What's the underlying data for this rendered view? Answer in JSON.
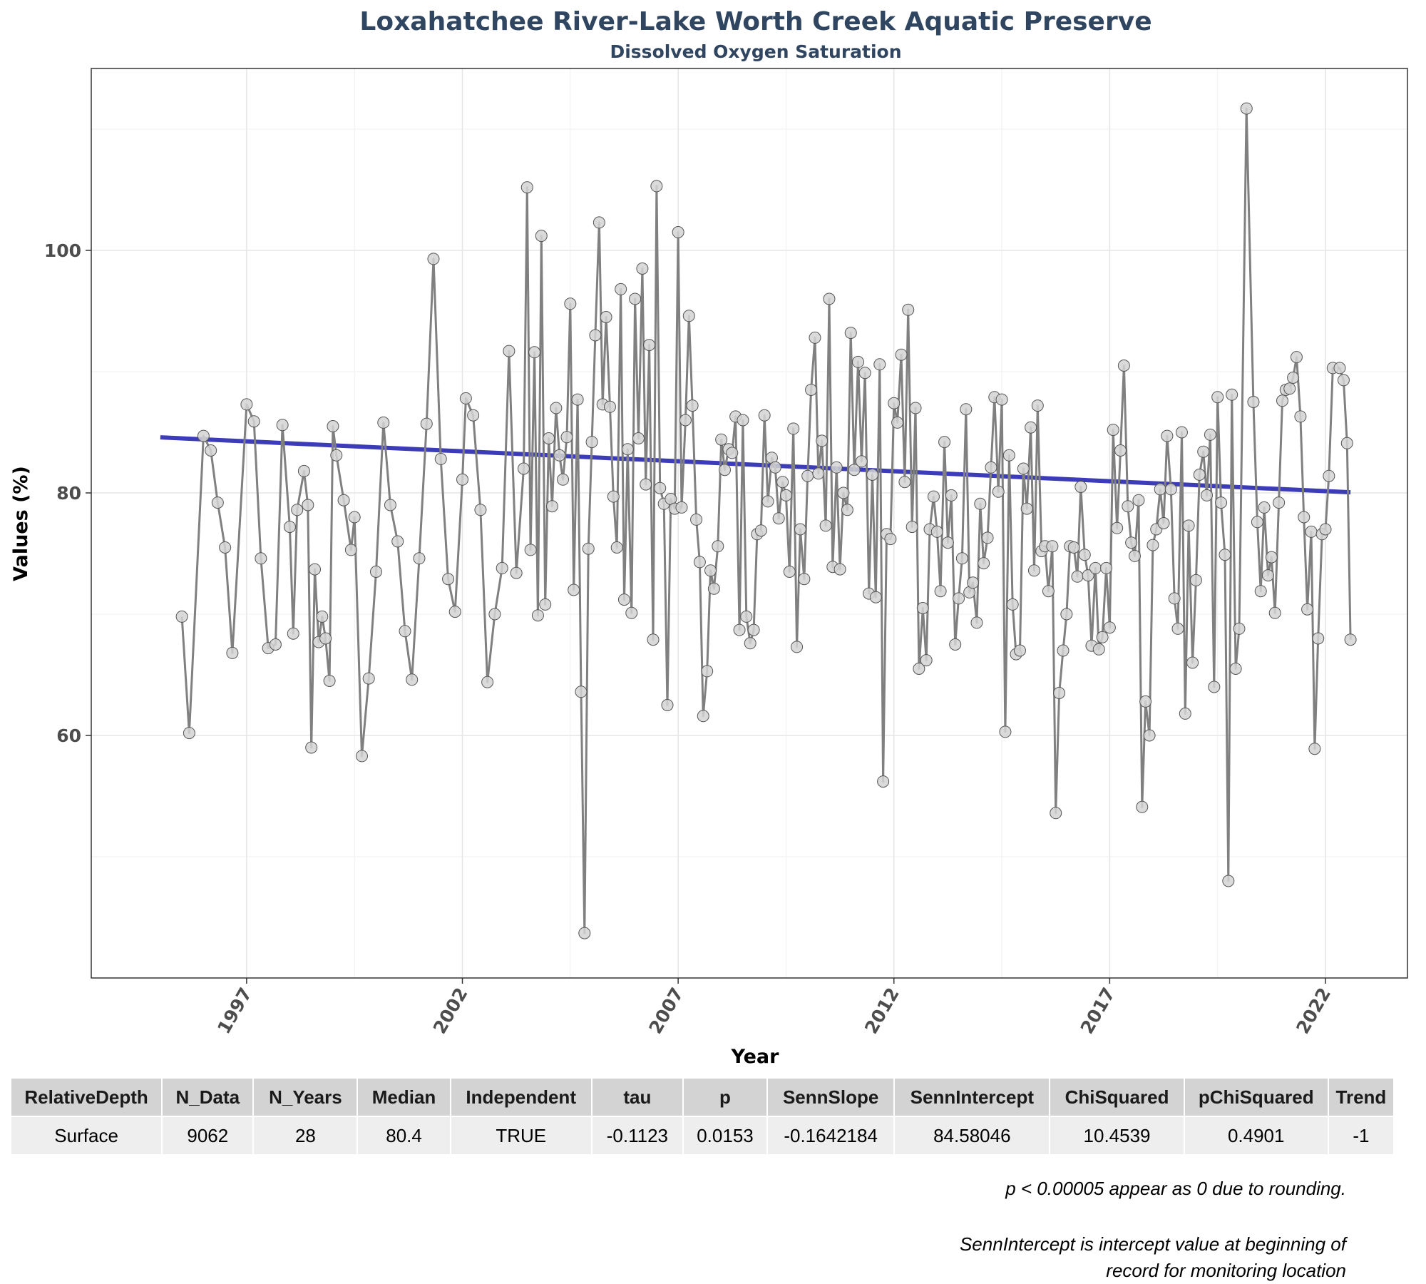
{
  "chart_data": {
    "type": "line",
    "title": "Loxahatchee River-Lake Worth Creek Aquatic Preserve",
    "subtitle": "Dissolved Oxygen Saturation",
    "xlabel": "Year",
    "ylabel": "Values (%)",
    "x_ticks": [
      1997,
      2002,
      2007,
      2012,
      2017,
      2022
    ],
    "y_ticks": [
      60,
      80,
      100
    ],
    "xlim": [
      1993.4,
      2023.9
    ],
    "ylim": [
      40,
      115
    ],
    "grid": true,
    "colors": {
      "series": "#808080",
      "points_fill": "#d3d3d3",
      "trend": "#3232b4",
      "title": "#2f4560"
    },
    "series": [
      {
        "values": [
          [
            1995.5,
            69.8
          ],
          [
            1995.67,
            60.2
          ],
          [
            1996.0,
            84.7
          ],
          [
            1996.17,
            83.5
          ],
          [
            1996.33,
            79.2
          ],
          [
            1996.5,
            75.5
          ],
          [
            1996.67,
            66.8
          ],
          [
            1997.0,
            87.3
          ],
          [
            1997.17,
            85.9
          ],
          [
            1997.33,
            74.6
          ],
          [
            1997.5,
            67.2
          ],
          [
            1997.67,
            67.5
          ],
          [
            1997.83,
            85.6
          ],
          [
            1998.0,
            77.2
          ],
          [
            1998.08,
            68.4
          ],
          [
            1998.17,
            78.6
          ],
          [
            1998.33,
            81.8
          ],
          [
            1998.42,
            79.0
          ],
          [
            1998.5,
            59.0
          ],
          [
            1998.58,
            73.7
          ],
          [
            1998.67,
            67.7
          ],
          [
            1998.75,
            69.8
          ],
          [
            1998.83,
            68.0
          ],
          [
            1998.92,
            64.5
          ],
          [
            1999.0,
            85.5
          ],
          [
            1999.08,
            83.1
          ],
          [
            1999.25,
            79.4
          ],
          [
            1999.42,
            75.3
          ],
          [
            1999.5,
            78.0
          ],
          [
            1999.67,
            58.3
          ],
          [
            1999.83,
            64.7
          ],
          [
            2000.0,
            73.5
          ],
          [
            2000.17,
            85.8
          ],
          [
            2000.33,
            79.0
          ],
          [
            2000.5,
            76.0
          ],
          [
            2000.67,
            68.6
          ],
          [
            2000.83,
            64.6
          ],
          [
            2001.0,
            74.6
          ],
          [
            2001.17,
            85.7
          ],
          [
            2001.33,
            99.3
          ],
          [
            2001.5,
            82.8
          ],
          [
            2001.67,
            72.9
          ],
          [
            2001.83,
            70.2
          ],
          [
            2002.0,
            81.1
          ],
          [
            2002.08,
            87.8
          ],
          [
            2002.25,
            86.4
          ],
          [
            2002.42,
            78.6
          ],
          [
            2002.58,
            64.4
          ],
          [
            2002.75,
            70.0
          ],
          [
            2002.92,
            73.8
          ],
          [
            2003.08,
            91.7
          ],
          [
            2003.25,
            73.4
          ],
          [
            2003.42,
            82.0
          ],
          [
            2003.5,
            105.2
          ],
          [
            2003.58,
            75.3
          ],
          [
            2003.67,
            91.6
          ],
          [
            2003.75,
            69.9
          ],
          [
            2003.83,
            101.2
          ],
          [
            2003.92,
            70.8
          ],
          [
            2004.0,
            84.5
          ],
          [
            2004.08,
            78.9
          ],
          [
            2004.17,
            87.0
          ],
          [
            2004.25,
            83.1
          ],
          [
            2004.33,
            81.1
          ],
          [
            2004.42,
            84.6
          ],
          [
            2004.5,
            95.6
          ],
          [
            2004.58,
            72.0
          ],
          [
            2004.67,
            87.7
          ],
          [
            2004.75,
            63.6
          ],
          [
            2004.83,
            43.7
          ],
          [
            2004.92,
            75.4
          ],
          [
            2005.0,
            84.2
          ],
          [
            2005.08,
            93.0
          ],
          [
            2005.17,
            102.3
          ],
          [
            2005.25,
            87.3
          ],
          [
            2005.33,
            94.5
          ],
          [
            2005.42,
            87.1
          ],
          [
            2005.5,
            79.7
          ],
          [
            2005.58,
            75.5
          ],
          [
            2005.67,
            96.8
          ],
          [
            2005.75,
            71.2
          ],
          [
            2005.83,
            83.6
          ],
          [
            2005.92,
            70.1
          ],
          [
            2006.0,
            96.0
          ],
          [
            2006.08,
            84.5
          ],
          [
            2006.17,
            98.5
          ],
          [
            2006.25,
            80.7
          ],
          [
            2006.33,
            92.2
          ],
          [
            2006.42,
            67.9
          ],
          [
            2006.5,
            105.3
          ],
          [
            2006.58,
            80.4
          ],
          [
            2006.67,
            79.1
          ],
          [
            2006.75,
            62.5
          ],
          [
            2006.83,
            79.5
          ],
          [
            2006.92,
            78.7
          ],
          [
            2007.0,
            101.5
          ],
          [
            2007.08,
            78.8
          ],
          [
            2007.17,
            86.0
          ],
          [
            2007.25,
            94.6
          ],
          [
            2007.33,
            87.2
          ],
          [
            2007.42,
            77.8
          ],
          [
            2007.5,
            74.3
          ],
          [
            2007.58,
            61.6
          ],
          [
            2007.67,
            65.3
          ],
          [
            2007.75,
            73.6
          ],
          [
            2007.83,
            72.1
          ],
          [
            2007.92,
            75.6
          ],
          [
            2008.0,
            84.4
          ],
          [
            2008.08,
            81.9
          ],
          [
            2008.17,
            83.6
          ],
          [
            2008.25,
            83.3
          ],
          [
            2008.33,
            86.3
          ],
          [
            2008.42,
            68.7
          ],
          [
            2008.5,
            86.0
          ],
          [
            2008.58,
            69.8
          ],
          [
            2008.67,
            67.6
          ],
          [
            2008.75,
            68.7
          ],
          [
            2008.83,
            76.6
          ],
          [
            2008.92,
            76.9
          ],
          [
            2009.0,
            86.4
          ],
          [
            2009.08,
            79.3
          ],
          [
            2009.17,
            82.9
          ],
          [
            2009.25,
            82.1
          ],
          [
            2009.33,
            77.9
          ],
          [
            2009.42,
            80.9
          ],
          [
            2009.5,
            79.8
          ],
          [
            2009.58,
            73.5
          ],
          [
            2009.67,
            85.3
          ],
          [
            2009.75,
            67.3
          ],
          [
            2009.83,
            77.0
          ],
          [
            2009.92,
            72.9
          ],
          [
            2010.0,
            81.4
          ],
          [
            2010.08,
            88.5
          ],
          [
            2010.17,
            92.8
          ],
          [
            2010.25,
            81.6
          ],
          [
            2010.33,
            84.3
          ],
          [
            2010.42,
            77.3
          ],
          [
            2010.5,
            96.0
          ],
          [
            2010.58,
            73.9
          ],
          [
            2010.67,
            82.1
          ],
          [
            2010.75,
            73.7
          ],
          [
            2010.83,
            80.0
          ],
          [
            2010.92,
            78.6
          ],
          [
            2011.0,
            93.2
          ],
          [
            2011.08,
            81.9
          ],
          [
            2011.17,
            90.8
          ],
          [
            2011.25,
            82.6
          ],
          [
            2011.33,
            89.9
          ],
          [
            2011.42,
            71.7
          ],
          [
            2011.5,
            81.5
          ],
          [
            2011.58,
            71.4
          ],
          [
            2011.67,
            90.6
          ],
          [
            2011.75,
            56.2
          ],
          [
            2011.83,
            76.6
          ],
          [
            2011.92,
            76.2
          ],
          [
            2012.0,
            87.4
          ],
          [
            2012.08,
            85.8
          ],
          [
            2012.17,
            91.4
          ],
          [
            2012.25,
            80.9
          ],
          [
            2012.33,
            95.1
          ],
          [
            2012.42,
            77.2
          ],
          [
            2012.5,
            87.0
          ],
          [
            2012.58,
            65.5
          ],
          [
            2012.67,
            70.5
          ],
          [
            2012.75,
            66.2
          ],
          [
            2012.83,
            77.0
          ],
          [
            2012.92,
            79.7
          ],
          [
            2013.0,
            76.8
          ],
          [
            2013.08,
            71.9
          ],
          [
            2013.17,
            84.2
          ],
          [
            2013.25,
            75.9
          ],
          [
            2013.33,
            79.8
          ],
          [
            2013.42,
            67.5
          ],
          [
            2013.5,
            71.3
          ],
          [
            2013.58,
            74.6
          ],
          [
            2013.67,
            86.9
          ],
          [
            2013.75,
            71.8
          ],
          [
            2013.83,
            72.6
          ],
          [
            2013.92,
            69.3
          ],
          [
            2014.0,
            79.1
          ],
          [
            2014.08,
            74.2
          ],
          [
            2014.17,
            76.3
          ],
          [
            2014.25,
            82.1
          ],
          [
            2014.33,
            87.9
          ],
          [
            2014.42,
            80.1
          ],
          [
            2014.5,
            87.7
          ],
          [
            2014.58,
            60.3
          ],
          [
            2014.67,
            83.1
          ],
          [
            2014.75,
            70.8
          ],
          [
            2014.83,
            66.7
          ],
          [
            2014.92,
            67.0
          ],
          [
            2015.0,
            82.0
          ],
          [
            2015.08,
            78.7
          ],
          [
            2015.17,
            85.4
          ],
          [
            2015.25,
            73.6
          ],
          [
            2015.33,
            87.2
          ],
          [
            2015.42,
            75.2
          ],
          [
            2015.5,
            75.6
          ],
          [
            2015.58,
            71.9
          ],
          [
            2015.67,
            75.6
          ],
          [
            2015.75,
            53.6
          ],
          [
            2015.83,
            63.5
          ],
          [
            2015.92,
            67.0
          ],
          [
            2016.0,
            70.0
          ],
          [
            2016.08,
            75.6
          ],
          [
            2016.17,
            75.5
          ],
          [
            2016.25,
            73.1
          ],
          [
            2016.33,
            80.5
          ],
          [
            2016.42,
            74.9
          ],
          [
            2016.5,
            73.2
          ],
          [
            2016.58,
            67.4
          ],
          [
            2016.67,
            73.8
          ],
          [
            2016.75,
            67.1
          ],
          [
            2016.83,
            68.1
          ],
          [
            2016.92,
            73.8
          ],
          [
            2017.0,
            68.9
          ],
          [
            2017.08,
            85.2
          ],
          [
            2017.17,
            77.1
          ],
          [
            2017.25,
            83.5
          ],
          [
            2017.33,
            90.5
          ],
          [
            2017.42,
            78.9
          ],
          [
            2017.5,
            75.9
          ],
          [
            2017.58,
            74.8
          ],
          [
            2017.67,
            79.4
          ],
          [
            2017.75,
            54.1
          ],
          [
            2017.83,
            62.8
          ],
          [
            2017.92,
            60.0
          ],
          [
            2018.0,
            75.7
          ],
          [
            2018.08,
            77.0
          ],
          [
            2018.17,
            80.3
          ],
          [
            2018.25,
            77.5
          ],
          [
            2018.33,
            84.7
          ],
          [
            2018.42,
            80.3
          ],
          [
            2018.5,
            71.3
          ],
          [
            2018.58,
            68.8
          ],
          [
            2018.67,
            85.0
          ],
          [
            2018.75,
            61.8
          ],
          [
            2018.83,
            77.3
          ],
          [
            2018.92,
            66.0
          ],
          [
            2019.0,
            72.8
          ],
          [
            2019.08,
            81.5
          ],
          [
            2019.17,
            83.4
          ],
          [
            2019.25,
            79.8
          ],
          [
            2019.33,
            84.8
          ],
          [
            2019.42,
            64.0
          ],
          [
            2019.5,
            87.9
          ],
          [
            2019.58,
            79.2
          ],
          [
            2019.67,
            74.9
          ],
          [
            2019.75,
            48.0
          ],
          [
            2019.83,
            88.1
          ],
          [
            2019.92,
            65.5
          ],
          [
            2020.0,
            68.8
          ],
          [
            2020.17,
            111.7
          ],
          [
            2020.33,
            87.5
          ],
          [
            2020.42,
            77.6
          ],
          [
            2020.5,
            71.9
          ],
          [
            2020.58,
            78.8
          ],
          [
            2020.67,
            73.2
          ],
          [
            2020.75,
            74.7
          ],
          [
            2020.83,
            70.1
          ],
          [
            2020.92,
            79.2
          ],
          [
            2021.0,
            87.6
          ],
          [
            2021.08,
            88.5
          ],
          [
            2021.17,
            88.6
          ],
          [
            2021.25,
            89.5
          ],
          [
            2021.33,
            91.2
          ],
          [
            2021.42,
            86.3
          ],
          [
            2021.5,
            78.0
          ],
          [
            2021.58,
            70.4
          ],
          [
            2021.67,
            76.8
          ],
          [
            2021.75,
            58.9
          ],
          [
            2021.83,
            68.0
          ],
          [
            2021.92,
            76.6
          ],
          [
            2022.0,
            77.0
          ],
          [
            2022.08,
            81.4
          ],
          [
            2022.17,
            90.3
          ],
          [
            2022.33,
            90.3
          ],
          [
            2022.42,
            89.3
          ],
          [
            2022.5,
            84.1
          ],
          [
            2022.58,
            67.9
          ]
        ]
      }
    ],
    "trend_line": {
      "x": [
        1995.0,
        2022.58
      ],
      "y": [
        84.58046,
        80.05
      ]
    }
  },
  "table": {
    "headers": [
      "RelativeDepth",
      "N_Data",
      "N_Years",
      "Median",
      "Independent",
      "tau",
      "p",
      "SennSlope",
      "SennIntercept",
      "ChiSquared",
      "pChiSquared",
      "Trend"
    ],
    "rows": [
      [
        "Surface",
        "9062",
        "28",
        "80.4",
        "TRUE",
        "-0.1123",
        "0.0153",
        "-0.1642184",
        "84.58046",
        "10.4539",
        "0.4901",
        "-1"
      ]
    ]
  },
  "notes": {
    "note1": "p < 0.00005 appear as 0 due to rounding.",
    "note2_line1": "SennIntercept is intercept value at beginning of",
    "note2_line2": "record for monitoring location"
  }
}
